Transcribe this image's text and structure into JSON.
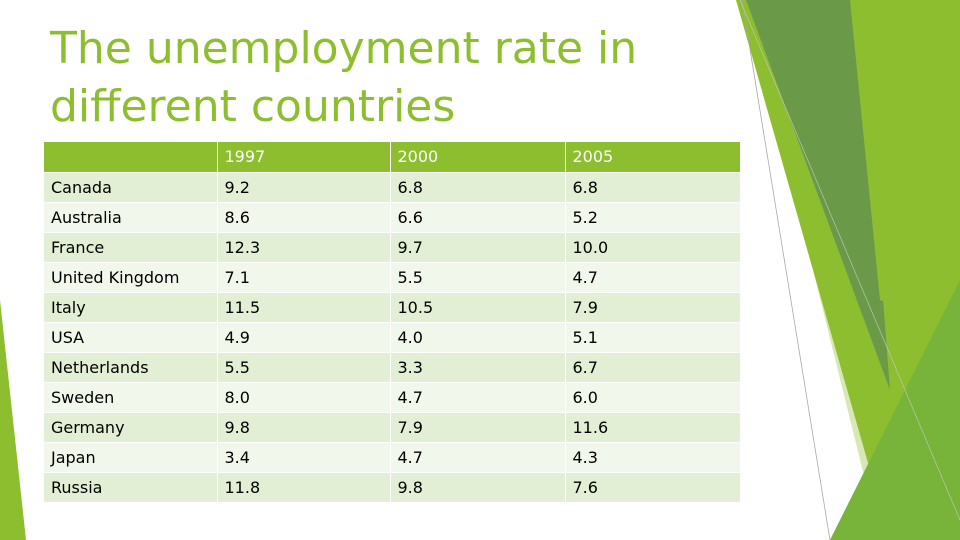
{
  "slide": {
    "title": "The unemployment rate in different countries"
  },
  "table": {
    "headers": [
      "",
      "1997",
      "2000",
      "2005"
    ],
    "rows": [
      [
        "Canada",
        "9.2",
        "6.8",
        "6.8"
      ],
      [
        "Australia",
        "8.6",
        "6.6",
        "5.2"
      ],
      [
        "France",
        "12.3",
        "9.7",
        "10.0"
      ],
      [
        "United Kingdom",
        "7.1",
        "5.5",
        "4.7"
      ],
      [
        "Italy",
        "11.5",
        "10.5",
        "7.9"
      ],
      [
        "USA",
        "4.9",
        "4.0",
        "5.1"
      ],
      [
        "Netherlands",
        "5.5",
        "3.3",
        "6.7"
      ],
      [
        "Sweden",
        "8.0",
        "4.7",
        "6.0"
      ],
      [
        "Germany",
        "9.8",
        "7.9",
        "11.6"
      ],
      [
        "Japan",
        "3.4",
        "4.7",
        "4.3"
      ],
      [
        "Russia",
        "11.8",
        "9.8",
        "7.6"
      ]
    ]
  },
  "theme": {
    "accent": "#8cbe2f",
    "row_odd": "#e3efd4",
    "row_even": "#f1f7ea"
  }
}
